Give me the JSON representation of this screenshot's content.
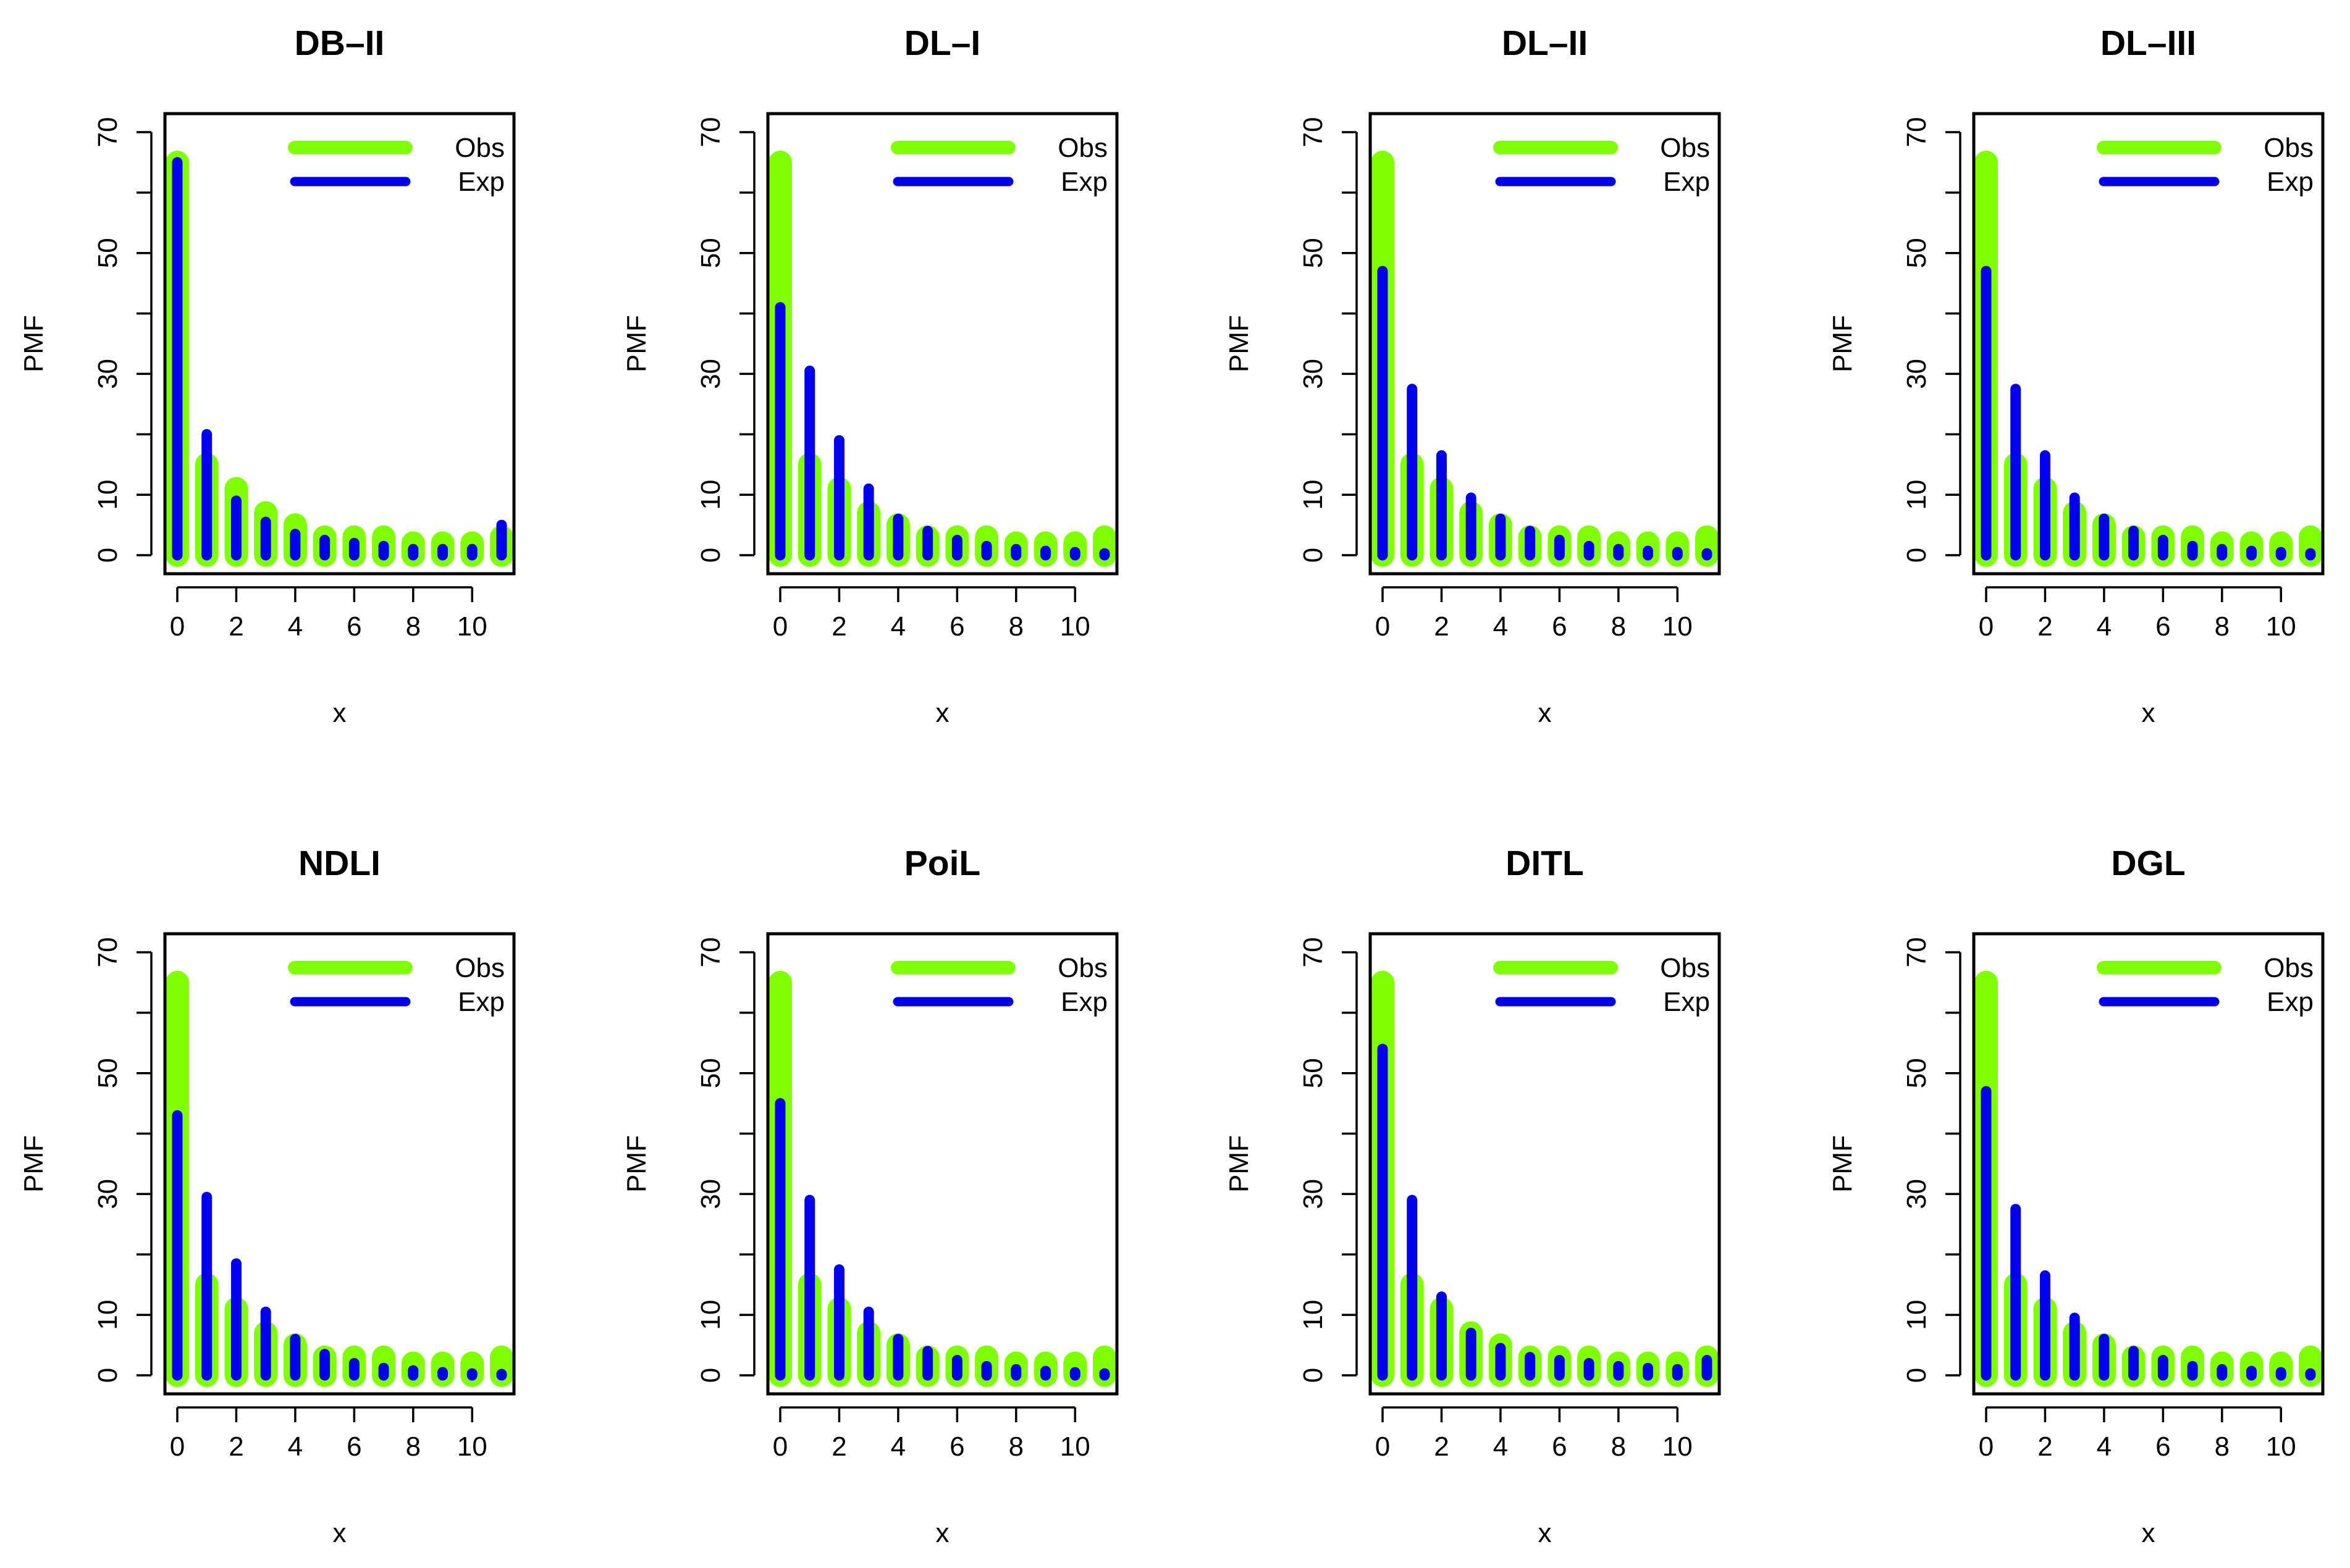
{
  "chart_data": [
    {
      "type": "bar",
      "title": "DB–II",
      "xlabel": "x",
      "ylabel": "PMF",
      "x": [
        0,
        1,
        2,
        3,
        4,
        5,
        6,
        7,
        8,
        9,
        10,
        11
      ],
      "xlim": [
        0,
        11
      ],
      "ylim": [
        0,
        70
      ],
      "xticks": [
        "0",
        "2",
        "4",
        "6",
        "8",
        "10"
      ],
      "yticks": [
        "0",
        "10",
        "30",
        "50",
        "70"
      ],
      "legend_position": "top-right",
      "series": [
        {
          "name": "Obs",
          "color": "#7FFF00",
          "values": [
            65,
            15,
            11,
            7,
            5,
            3,
            3,
            3,
            2,
            2,
            2,
            3
          ]
        },
        {
          "name": "Exp",
          "color": "#0000EE",
          "values": [
            65,
            20,
            9,
            5.5,
            3.5,
            2.5,
            2,
            1.5,
            1,
            1,
            1,
            5
          ]
        }
      ]
    },
    {
      "type": "bar",
      "title": "DL–I",
      "xlabel": "x",
      "ylabel": "PMF",
      "x": [
        0,
        1,
        2,
        3,
        4,
        5,
        6,
        7,
        8,
        9,
        10,
        11
      ],
      "xlim": [
        0,
        11
      ],
      "ylim": [
        0,
        70
      ],
      "xticks": [
        "0",
        "2",
        "4",
        "6",
        "8",
        "10"
      ],
      "yticks": [
        "0",
        "10",
        "30",
        "50",
        "70"
      ],
      "legend_position": "top-right",
      "series": [
        {
          "name": "Obs",
          "color": "#7FFF00",
          "values": [
            65,
            15,
            11,
            7,
            5,
            3,
            3,
            3,
            2,
            2,
            2,
            3
          ]
        },
        {
          "name": "Exp",
          "color": "#0000EE",
          "values": [
            41,
            30.5,
            19,
            11,
            6,
            4,
            2.5,
            1.5,
            1,
            0.7,
            0.5,
            0.3
          ]
        }
      ]
    },
    {
      "type": "bar",
      "title": "DL–II",
      "xlabel": "x",
      "ylabel": "PMF",
      "x": [
        0,
        1,
        2,
        3,
        4,
        5,
        6,
        7,
        8,
        9,
        10,
        11
      ],
      "xlim": [
        0,
        11
      ],
      "ylim": [
        0,
        70
      ],
      "xticks": [
        "0",
        "2",
        "4",
        "6",
        "8",
        "10"
      ],
      "yticks": [
        "0",
        "10",
        "30",
        "50",
        "70"
      ],
      "legend_position": "top-right",
      "series": [
        {
          "name": "Obs",
          "color": "#7FFF00",
          "values": [
            65,
            15,
            11,
            7,
            5,
            3,
            3,
            3,
            2,
            2,
            2,
            3
          ]
        },
        {
          "name": "Exp",
          "color": "#0000EE",
          "values": [
            47,
            27.5,
            16.5,
            9.5,
            6,
            4,
            2.5,
            1.5,
            1,
            0.7,
            0.5,
            0.3
          ]
        }
      ]
    },
    {
      "type": "bar",
      "title": "DL–III",
      "xlabel": "x",
      "ylabel": "PMF",
      "x": [
        0,
        1,
        2,
        3,
        4,
        5,
        6,
        7,
        8,
        9,
        10,
        11
      ],
      "xlim": [
        0,
        11
      ],
      "ylim": [
        0,
        70
      ],
      "xticks": [
        "0",
        "2",
        "4",
        "6",
        "8",
        "10"
      ],
      "yticks": [
        "0",
        "10",
        "30",
        "50",
        "70"
      ],
      "legend_position": "top-right",
      "series": [
        {
          "name": "Obs",
          "color": "#7FFF00",
          "values": [
            65,
            15,
            11,
            7,
            5,
            3,
            3,
            3,
            2,
            2,
            2,
            3
          ]
        },
        {
          "name": "Exp",
          "color": "#0000EE",
          "values": [
            47,
            27.5,
            16.5,
            9.5,
            6,
            4,
            2.5,
            1.5,
            1,
            0.7,
            0.5,
            0.3
          ]
        }
      ]
    },
    {
      "type": "bar",
      "title": "NDLI",
      "xlabel": "x",
      "ylabel": "PMF",
      "x": [
        0,
        1,
        2,
        3,
        4,
        5,
        6,
        7,
        8,
        9,
        10,
        11
      ],
      "xlim": [
        0,
        11
      ],
      "ylim": [
        0,
        70
      ],
      "xticks": [
        "0",
        "2",
        "4",
        "6",
        "8",
        "10"
      ],
      "yticks": [
        "0",
        "10",
        "30",
        "50",
        "70"
      ],
      "legend_position": "top-right",
      "series": [
        {
          "name": "Obs",
          "color": "#7FFF00",
          "values": [
            65,
            15,
            11,
            7,
            5,
            3,
            3,
            3,
            2,
            2,
            2,
            3
          ]
        },
        {
          "name": "Exp",
          "color": "#0000EE",
          "values": [
            43,
            29.5,
            18.5,
            10.5,
            6,
            3.5,
            2,
            1.2,
            0.8,
            0.5,
            0.3,
            0.2
          ]
        }
      ]
    },
    {
      "type": "bar",
      "title": "PoiL",
      "xlabel": "x",
      "ylabel": "PMF",
      "x": [
        0,
        1,
        2,
        3,
        4,
        5,
        6,
        7,
        8,
        9,
        10,
        11
      ],
      "xlim": [
        0,
        11
      ],
      "ylim": [
        0,
        70
      ],
      "xticks": [
        "0",
        "2",
        "4",
        "6",
        "8",
        "10"
      ],
      "yticks": [
        "0",
        "10",
        "30",
        "50",
        "70"
      ],
      "legend_position": "top-right",
      "series": [
        {
          "name": "Obs",
          "color": "#7FFF00",
          "values": [
            65,
            15,
            11,
            7,
            5,
            3,
            3,
            3,
            2,
            2,
            2,
            3
          ]
        },
        {
          "name": "Exp",
          "color": "#0000EE",
          "values": [
            45,
            29,
            17.5,
            10.5,
            6,
            4,
            2.5,
            1.5,
            1,
            0.7,
            0.5,
            0.3
          ]
        }
      ]
    },
    {
      "type": "bar",
      "title": "DITL",
      "xlabel": "x",
      "ylabel": "PMF",
      "x": [
        0,
        1,
        2,
        3,
        4,
        5,
        6,
        7,
        8,
        9,
        10,
        11
      ],
      "xlim": [
        0,
        11
      ],
      "ylim": [
        0,
        70
      ],
      "xticks": [
        "0",
        "2",
        "4",
        "6",
        "8",
        "10"
      ],
      "yticks": [
        "0",
        "10",
        "30",
        "50",
        "70"
      ],
      "legend_position": "top-right",
      "series": [
        {
          "name": "Obs",
          "color": "#7FFF00",
          "values": [
            65,
            15,
            11,
            7,
            5,
            3,
            3,
            3,
            2,
            2,
            2,
            3
          ]
        },
        {
          "name": "Exp",
          "color": "#0000EE",
          "values": [
            54,
            29,
            13,
            7,
            4.5,
            3,
            2.5,
            2,
            1.5,
            1.2,
            1,
            2.5
          ]
        }
      ]
    },
    {
      "type": "bar",
      "title": "DGL",
      "xlabel": "x",
      "ylabel": "PMF",
      "x": [
        0,
        1,
        2,
        3,
        4,
        5,
        6,
        7,
        8,
        9,
        10,
        11
      ],
      "xlim": [
        0,
        11
      ],
      "ylim": [
        0,
        70
      ],
      "xticks": [
        "0",
        "2",
        "4",
        "6",
        "8",
        "10"
      ],
      "yticks": [
        "0",
        "10",
        "30",
        "50",
        "70"
      ],
      "legend_position": "top-right",
      "series": [
        {
          "name": "Obs",
          "color": "#7FFF00",
          "values": [
            65,
            15,
            11,
            7,
            5,
            3,
            3,
            3,
            2,
            2,
            2,
            3
          ]
        },
        {
          "name": "Exp",
          "color": "#0000EE",
          "values": [
            47,
            27.5,
            16.5,
            9.5,
            6,
            4,
            2.5,
            1.5,
            1,
            0.7,
            0.5,
            0.3
          ]
        }
      ]
    }
  ]
}
